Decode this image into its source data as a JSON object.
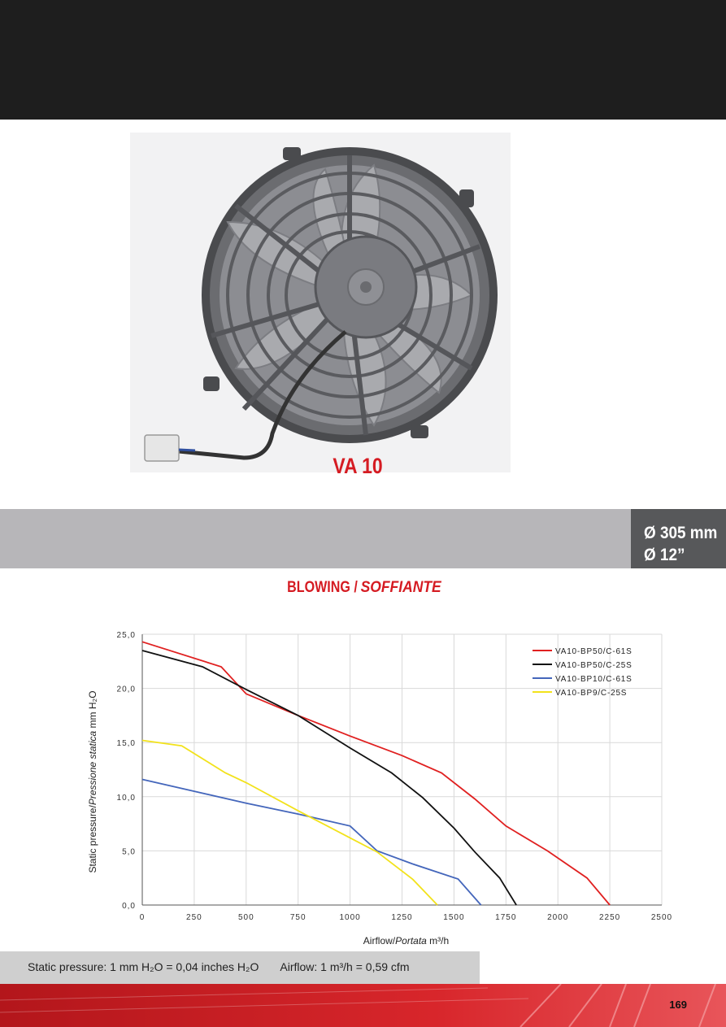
{
  "product": {
    "model": "VA 10",
    "diameter_mm": "Ø 305 mm",
    "diameter_in": "Ø 12”"
  },
  "chart_title": {
    "main": "BLOWING / ",
    "italic": "SOFFIANTE"
  },
  "chart_data": {
    "type": "line",
    "xlabel": "Airflow/",
    "xlabel_italic": "Portata",
    "xlabel_unit": "m³/h",
    "ylabel": "Static pressure/",
    "ylabel_italic": "Pressione statica",
    "ylabel_unit": "mm H₂O",
    "xlim": [
      0,
      2500
    ],
    "ylim": [
      0,
      25
    ],
    "xticks": [
      "0",
      "250",
      "500",
      "750",
      "1000",
      "1250",
      "1500",
      "1750",
      "2000",
      "2250",
      "2500"
    ],
    "yticks": [
      "0,0",
      "5,0",
      "10,0",
      "15,0",
      "20,0",
      "25,0"
    ],
    "grid": true,
    "legend_position": "top-right",
    "series": [
      {
        "name": "VA10-BP50/C-61S",
        "color": "#e02020",
        "points": [
          [
            0,
            24.3
          ],
          [
            380,
            22
          ],
          [
            500,
            19.5
          ],
          [
            750,
            17.5
          ],
          [
            1000,
            15.6
          ],
          [
            1250,
            13.8
          ],
          [
            1440,
            12.2
          ],
          [
            1600,
            9.8
          ],
          [
            1750,
            7.3
          ],
          [
            1950,
            5
          ],
          [
            2140,
            2.5
          ],
          [
            2250,
            0
          ]
        ]
      },
      {
        "name": "VA10-BP50/C-25S",
        "color": "#111111",
        "points": [
          [
            0,
            23.5
          ],
          [
            290,
            22
          ],
          [
            500,
            19.9
          ],
          [
            750,
            17.5
          ],
          [
            1000,
            14.5
          ],
          [
            1200,
            12.2
          ],
          [
            1350,
            9.9
          ],
          [
            1500,
            7.1
          ],
          [
            1600,
            4.9
          ],
          [
            1720,
            2.5
          ],
          [
            1800,
            0
          ]
        ]
      },
      {
        "name": "VA10-BP10/C-61S",
        "color": "#4466bb",
        "points": [
          [
            0,
            11.6
          ],
          [
            250,
            10.5
          ],
          [
            500,
            9.4
          ],
          [
            750,
            8.4
          ],
          [
            1000,
            7.3
          ],
          [
            1130,
            5
          ],
          [
            1300,
            3.8
          ],
          [
            1520,
            2.4
          ],
          [
            1630,
            0
          ]
        ]
      },
      {
        "name": "VA10-BP9/C-25S",
        "color": "#f2e21b",
        "points": [
          [
            0,
            15.2
          ],
          [
            190,
            14.7
          ],
          [
            400,
            12.2
          ],
          [
            500,
            11.3
          ],
          [
            750,
            8.7
          ],
          [
            1000,
            6.2
          ],
          [
            1130,
            4.9
          ],
          [
            1300,
            2.4
          ],
          [
            1420,
            0
          ]
        ]
      }
    ]
  },
  "note": {
    "pressure_text": "Static pressure: 1 mm H₂O = 0,04 inches H₂O",
    "airflow_text": "Airflow: 1 m³/h = 0,59 cfm"
  },
  "page_number": "169",
  "colors": {
    "brand_red": "#d51b22",
    "header_black": "#1e1e1e",
    "band_grey": "#b7b6b9",
    "size_box": "#57585a"
  }
}
